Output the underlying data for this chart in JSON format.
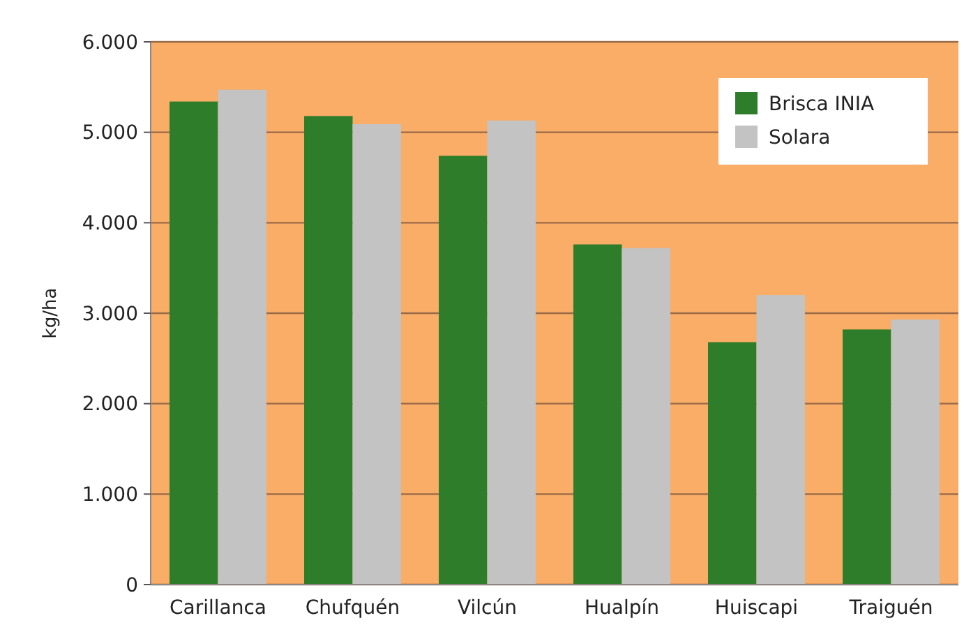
{
  "chart_data": {
    "type": "bar",
    "ylabel": "kg/ha",
    "categories": [
      "Carillanca",
      "Chufquén",
      "Vilcún",
      "Hualpín",
      "Huiscapi",
      "Traiguén"
    ],
    "series": [
      {
        "name": "Brisca INIA",
        "color": "#2e7d2a",
        "values": [
          5340,
          5180,
          4740,
          3760,
          2680,
          2820
        ]
      },
      {
        "name": "Solara",
        "color": "#c3c3c3",
        "values": [
          5470,
          5090,
          5130,
          3720,
          3200,
          2930
        ]
      }
    ],
    "ylim": [
      0,
      6000
    ],
    "yticks": [
      {
        "value": 0,
        "label": "0"
      },
      {
        "value": 1000,
        "label": "1.000"
      },
      {
        "value": 2000,
        "label": "2.000"
      },
      {
        "value": 3000,
        "label": "3.000"
      },
      {
        "value": 4000,
        "label": "4.000"
      },
      {
        "value": 5000,
        "label": "5.000"
      },
      {
        "value": 6000,
        "label": "6.000"
      }
    ],
    "grid": "y",
    "legend": "top right"
  }
}
